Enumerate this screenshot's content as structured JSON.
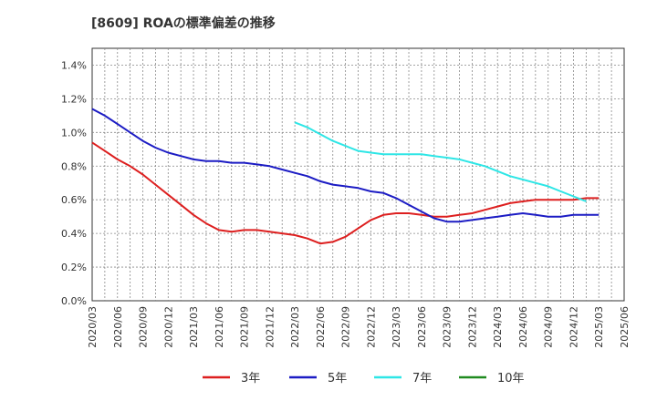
{
  "chart_data": {
    "type": "line",
    "title": "[8609]  ROAの標準偏差の推移",
    "x_ticks": [
      "2020/03",
      "2020/06",
      "2020/09",
      "2020/12",
      "2021/03",
      "2021/06",
      "2021/09",
      "2021/12",
      "2022/03",
      "2022/06",
      "2022/09",
      "2022/12",
      "2023/03",
      "2023/06",
      "2023/09",
      "2023/12",
      "2024/03",
      "2024/06",
      "2024/09",
      "2024/12",
      "2025/03",
      "2025/06"
    ],
    "y_ticks": [
      "0.0%",
      "0.2%",
      "0.4%",
      "0.6%",
      "0.8%",
      "1.0%",
      "1.2%",
      "1.4%"
    ],
    "ylim": [
      0,
      1.5
    ],
    "grid": true,
    "legend_position": "bottom",
    "series": [
      {
        "name": "3年",
        "color": "#dd1f1f",
        "values": [
          0.94,
          0.89,
          0.84,
          0.8,
          0.75,
          0.69,
          0.63,
          0.57,
          0.51,
          0.46,
          0.42,
          0.41,
          0.42,
          0.42,
          0.41,
          0.4,
          0.39,
          0.37,
          0.34,
          0.35,
          0.38,
          0.43,
          0.48,
          0.51,
          0.52,
          0.52,
          0.51,
          0.5,
          0.5,
          0.51,
          0.52,
          0.54,
          0.56,
          0.58,
          0.59,
          0.6,
          0.6,
          0.6,
          0.6,
          0.61,
          0.61
        ]
      },
      {
        "name": "5年",
        "color": "#1c1cc4",
        "values": [
          1.14,
          1.1,
          1.05,
          1.0,
          0.95,
          0.91,
          0.88,
          0.86,
          0.84,
          0.83,
          0.83,
          0.82,
          0.82,
          0.81,
          0.8,
          0.78,
          0.76,
          0.74,
          0.71,
          0.69,
          0.68,
          0.67,
          0.65,
          0.64,
          0.61,
          0.57,
          0.53,
          0.49,
          0.47,
          0.47,
          0.48,
          0.49,
          0.5,
          0.51,
          0.52,
          0.51,
          0.5,
          0.5,
          0.51,
          0.51,
          0.51
        ]
      },
      {
        "name": "7年",
        "color": "#2ee6e6",
        "values": [
          null,
          null,
          null,
          null,
          null,
          null,
          null,
          null,
          null,
          null,
          null,
          null,
          null,
          null,
          null,
          null,
          1.06,
          1.03,
          0.99,
          0.95,
          0.92,
          0.89,
          0.88,
          0.87,
          0.87,
          0.87,
          0.87,
          0.86,
          0.85,
          0.84,
          0.82,
          0.8,
          0.77,
          0.74,
          0.72,
          0.7,
          0.68,
          0.65,
          0.62,
          0.59,
          null
        ]
      },
      {
        "name": "10年",
        "color": "#1f8a1f",
        "values": []
      }
    ]
  }
}
